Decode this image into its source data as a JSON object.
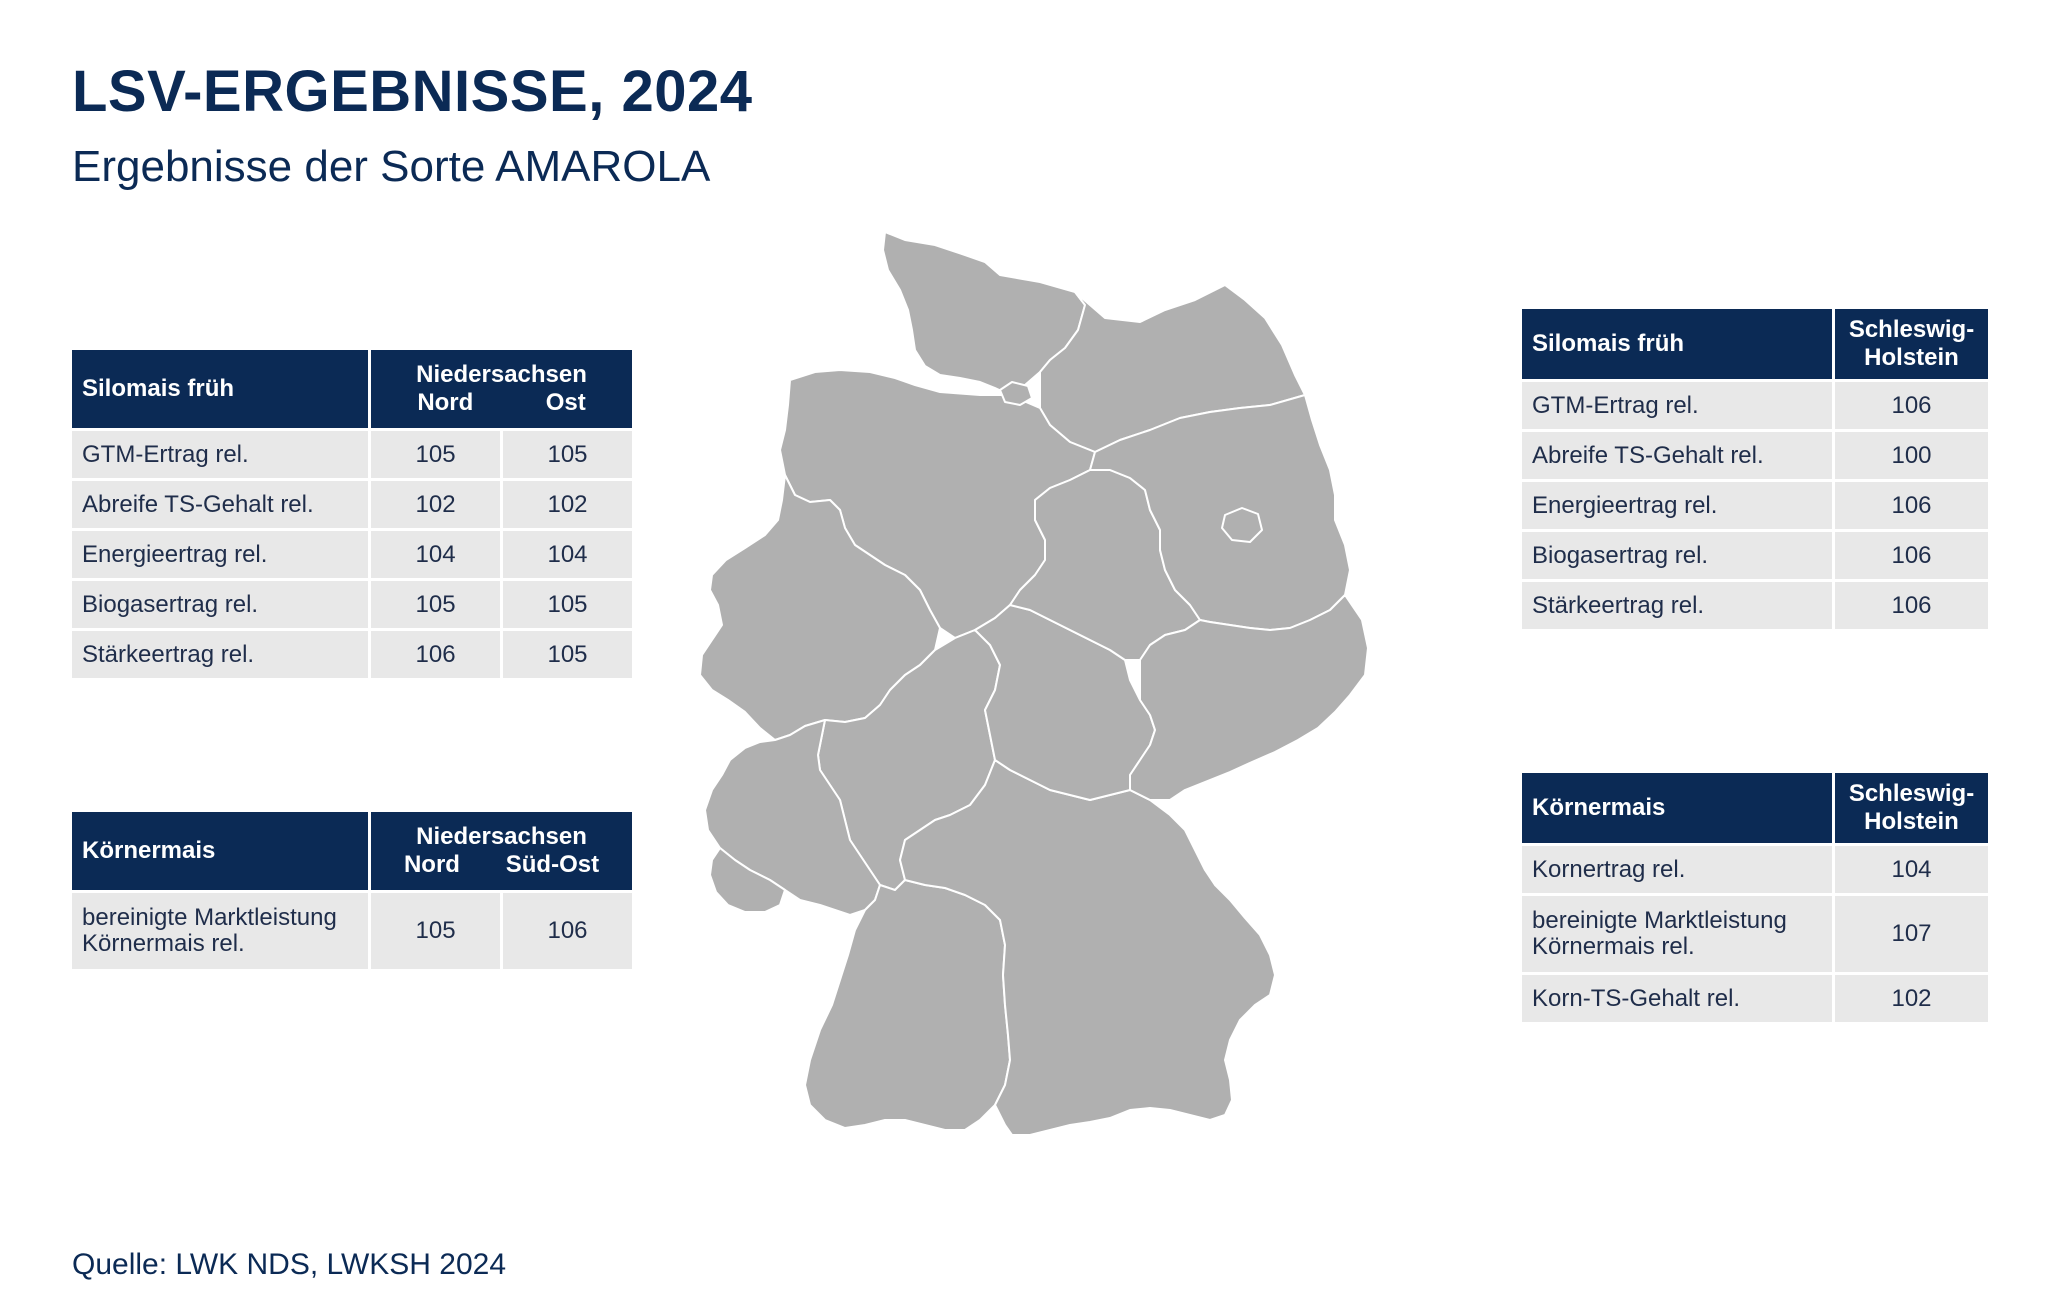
{
  "header": {
    "title": "LSV-ERGEBNISSE, 2024",
    "subtitle": "Ergebnisse der Sorte AMAROLA"
  },
  "footer": {
    "source": "Quelle: LWK NDS, LWKSH 2024"
  },
  "colors": {
    "navy": "#0b2a55",
    "cell_bg": "#e8e8e8",
    "map_fill": "#b0b0b0",
    "map_border": "#ffffff"
  },
  "tables": {
    "silomais_nds": {
      "title": "Silomais früh",
      "group": "Niedersachsen",
      "cols": [
        "Nord",
        "Ost"
      ],
      "rows": [
        {
          "label": "GTM-Ertrag rel.",
          "values": [
            "105",
            "105"
          ]
        },
        {
          "label": "Abreife TS-Gehalt rel.",
          "values": [
            "102",
            "102"
          ]
        },
        {
          "label": "Energieertrag rel.",
          "values": [
            "104",
            "104"
          ]
        },
        {
          "label": "Biogasertrag rel.",
          "values": [
            "105",
            "105"
          ]
        },
        {
          "label": "Stärkeertrag rel.",
          "values": [
            "106",
            "105"
          ]
        }
      ]
    },
    "koernermais_nds": {
      "title": "Körnermais",
      "group": "Niedersachsen",
      "cols": [
        "Nord",
        "Süd-Ost"
      ],
      "rows": [
        {
          "label_line1": "bereinigte Marktleistung",
          "label_line2": "Körnermais rel.",
          "values": [
            "105",
            "106"
          ]
        }
      ]
    },
    "silomais_sh": {
      "title": "Silomais früh",
      "col_line1": "Schleswig-",
      "col_line2": "Holstein",
      "rows": [
        {
          "label": "GTM-Ertrag rel.",
          "value": "106"
        },
        {
          "label": "Abreife TS-Gehalt rel.",
          "value": "100"
        },
        {
          "label": "Energieertrag rel.",
          "value": "106"
        },
        {
          "label": "Biogasertrag rel.",
          "value": "106"
        },
        {
          "label": "Stärkeertrag rel.",
          "value": "106"
        }
      ]
    },
    "koernermais_sh": {
      "title": "Körnermais",
      "col_line1": "Schleswig-",
      "col_line2": "Holstein",
      "rows": [
        {
          "label": "Kornertrag rel.",
          "value": "104"
        },
        {
          "label_line1": "bereinigte Marktleistung",
          "label_line2": "Körnermais rel.",
          "value": "107"
        },
        {
          "label": "Korn-TS-Gehalt rel.",
          "value": "102"
        }
      ]
    }
  }
}
